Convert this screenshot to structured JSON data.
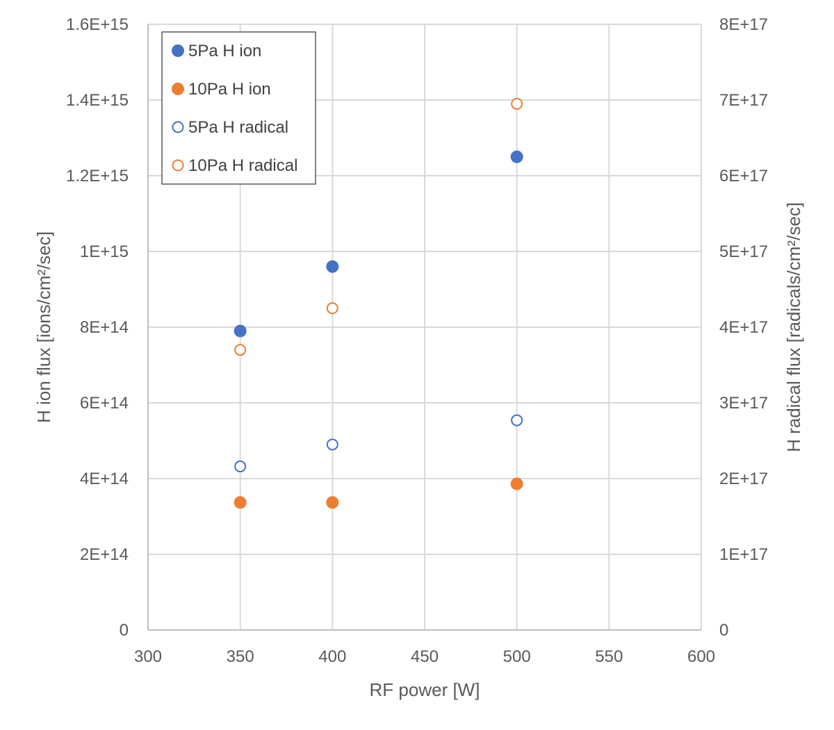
{
  "chart_data": {
    "type": "scatter",
    "xlabel": "RF power [W]",
    "ylabel": "H ion flux [ions/cm²/sec]",
    "y2label": "H radical flux [radicals/cm²/sec]",
    "xlim": [
      300,
      600
    ],
    "ylim": [
      0,
      1600000000000000.0
    ],
    "y2lim": [
      0,
      8e+17
    ],
    "x_ticks": [
      300,
      350,
      400,
      450,
      500,
      550,
      600
    ],
    "x_tick_labels": [
      "300",
      "350",
      "400",
      "450",
      "500",
      "550",
      "600"
    ],
    "y_ticks": [
      0,
      200000000000000.0,
      400000000000000.0,
      600000000000000.0,
      800000000000000.0,
      1000000000000000.0,
      1200000000000000.0,
      1400000000000000.0,
      1600000000000000.0
    ],
    "y_tick_labels": [
      "0",
      "2E+14",
      "4E+14",
      "6E+14",
      "8E+14",
      "1E+15",
      "1.2E+15",
      "1.4E+15",
      "1.6E+15"
    ],
    "y2_ticks": [
      0,
      1e+17,
      2e+17,
      3e+17,
      4e+17,
      5e+17,
      6e+17,
      7e+17,
      8e+17
    ],
    "y2_tick_labels": [
      "0",
      "1E+17",
      "2E+17",
      "3E+17",
      "4E+17",
      "5E+17",
      "6E+17",
      "7E+17",
      "8E+17"
    ],
    "grid": true,
    "legend_position": "top-left",
    "series": [
      {
        "name": "5Pa H ion",
        "axis": "left",
        "marker": "filled",
        "color": "#4472C4",
        "points": [
          {
            "x": 350,
            "y": 790000000000000.0
          },
          {
            "x": 400,
            "y": 960000000000000.0
          },
          {
            "x": 500,
            "y": 1250000000000000.0
          }
        ]
      },
      {
        "name": "10Pa H ion",
        "axis": "left",
        "marker": "filled",
        "color": "#ED7D31",
        "points": [
          {
            "x": 350,
            "y": 337000000000000.0
          },
          {
            "x": 400,
            "y": 337000000000000.0
          },
          {
            "x": 500,
            "y": 386000000000000.0
          }
        ]
      },
      {
        "name": "5Pa H radical",
        "axis": "right",
        "marker": "hollow",
        "color": "#4472C4",
        "points": [
          {
            "x": 350,
            "y": 2.16e+17
          },
          {
            "x": 400,
            "y": 2.45e+17
          },
          {
            "x": 500,
            "y": 2.77e+17
          }
        ]
      },
      {
        "name": "10Pa H radical",
        "axis": "right",
        "marker": "hollow",
        "color": "#ED7D31",
        "points": [
          {
            "x": 350,
            "y": 3.7e+17
          },
          {
            "x": 400,
            "y": 4.25e+17
          },
          {
            "x": 500,
            "y": 6.95e+17
          }
        ]
      }
    ]
  }
}
